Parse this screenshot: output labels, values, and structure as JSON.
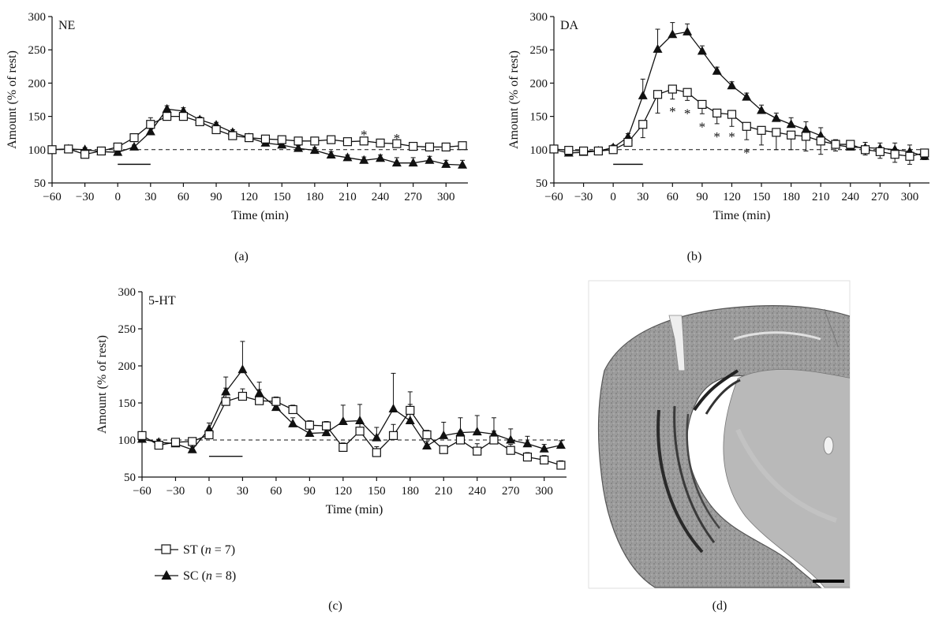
{
  "legend": {
    "entries": [
      {
        "label": "ST (",
        "n_text": "n",
        "rest": " = 7)",
        "marker": "open-square"
      },
      {
        "label": "SC (",
        "n_text": "n",
        "rest": " = 8)",
        "marker": "filled-triangle"
      }
    ]
  },
  "chart_data": [
    {
      "type": "line",
      "panel": "(a)",
      "title": "NE",
      "xlabel": "Time (min)",
      "ylabel": "Amount (% of rest)",
      "xlim": [
        -60,
        320
      ],
      "ylim": [
        50,
        300
      ],
      "xticks": [
        -60,
        -30,
        0,
        30,
        60,
        90,
        120,
        150,
        180,
        210,
        240,
        270,
        300
      ],
      "xtick_labels": [
        "−60",
        "−30",
        "0",
        "30",
        "60",
        "90",
        "120",
        "150",
        "180",
        "210",
        "240",
        "270",
        "300"
      ],
      "yticks": [
        50,
        100,
        150,
        200,
        250,
        300
      ],
      "baseline": 100,
      "stim_bar": [
        0,
        30,
        78
      ],
      "x": [
        -60,
        -45,
        -30,
        -15,
        0,
        15,
        30,
        45,
        60,
        75,
        90,
        105,
        120,
        135,
        150,
        165,
        180,
        195,
        210,
        225,
        240,
        255,
        270,
        285,
        300,
        315
      ],
      "series": [
        {
          "name": "ST",
          "marker": "open-square",
          "values": [
            100,
            101,
            93,
            98,
            104,
            118,
            138,
            150,
            150,
            142,
            130,
            121,
            118,
            116,
            115,
            113,
            113,
            115,
            112,
            113,
            110,
            109,
            105,
            104,
            104,
            106
          ],
          "err": [
            3,
            3,
            3,
            3,
            3,
            3,
            10,
            4,
            3,
            3,
            3,
            3,
            3,
            4,
            5,
            4,
            4,
            5,
            4,
            4,
            4,
            4,
            3,
            3,
            3,
            5
          ]
        },
        {
          "name": "SC",
          "marker": "filled-triangle",
          "values": [
            100,
            101,
            100,
            97,
            96,
            104,
            127,
            161,
            158,
            145,
            137,
            126,
            118,
            110,
            107,
            102,
            99,
            92,
            88,
            84,
            87,
            80,
            80,
            84,
            78,
            77
          ],
          "err": [
            3,
            3,
            3,
            3,
            3,
            3,
            5,
            5,
            5,
            4,
            4,
            4,
            4,
            4,
            4,
            4,
            4,
            5,
            4,
            5,
            5,
            8,
            8,
            6,
            6,
            7
          ]
        }
      ],
      "annotations": [
        {
          "x": 225,
          "y": 125,
          "text": "*"
        },
        {
          "x": 255,
          "y": 120,
          "text": "*"
        }
      ]
    },
    {
      "type": "line",
      "panel": "(b)",
      "title": "DA",
      "xlabel": "Time (min)",
      "ylabel": "Amount (% of rest)",
      "xlim": [
        -60,
        320
      ],
      "ylim": [
        50,
        300
      ],
      "xticks": [
        -60,
        -30,
        0,
        30,
        60,
        90,
        120,
        150,
        180,
        210,
        240,
        270,
        300
      ],
      "xtick_labels": [
        "−60",
        "−30",
        "0",
        "30",
        "60",
        "90",
        "120",
        "150",
        "180",
        "210",
        "240",
        "270",
        "300"
      ],
      "yticks": [
        50,
        100,
        150,
        200,
        250,
        300
      ],
      "baseline": 100,
      "stim_bar": [
        0,
        30,
        78
      ],
      "x": [
        -60,
        -45,
        -30,
        -15,
        0,
        15,
        30,
        45,
        60,
        75,
        90,
        105,
        120,
        135,
        150,
        165,
        180,
        195,
        210,
        225,
        240,
        255,
        270,
        285,
        300,
        315
      ],
      "series": [
        {
          "name": "ST",
          "marker": "open-square",
          "values": [
            101,
            99,
            98,
            98,
            100,
            111,
            138,
            183,
            191,
            186,
            168,
            155,
            153,
            135,
            129,
            126,
            122,
            120,
            113,
            108,
            108,
            100,
            97,
            93,
            90,
            95
          ],
          "err": [
            4,
            4,
            3,
            3,
            3,
            5,
            20,
            28,
            15,
            12,
            14,
            16,
            18,
            20,
            22,
            26,
            22,
            22,
            20,
            10,
            8,
            8,
            10,
            12,
            12,
            10
          ]
        },
        {
          "name": "SC",
          "marker": "filled-triangle",
          "values": [
            100,
            95,
            96,
            98,
            103,
            119,
            181,
            251,
            273,
            277,
            248,
            218,
            196,
            179,
            159,
            147,
            138,
            130,
            121,
            107,
            104,
            103,
            102,
            100,
            97,
            90
          ],
          "err": [
            3,
            3,
            3,
            3,
            4,
            5,
            25,
            30,
            18,
            12,
            8,
            6,
            6,
            6,
            8,
            8,
            10,
            12,
            12,
            8,
            8,
            8,
            8,
            10,
            10,
            10
          ]
        }
      ],
      "annotations": [
        {
          "x": 60,
          "y": 160,
          "text": "*"
        },
        {
          "x": 75,
          "y": 157,
          "text": "*"
        },
        {
          "x": 90,
          "y": 137,
          "text": "*"
        },
        {
          "x": 105,
          "y": 122,
          "text": "*"
        },
        {
          "x": 120,
          "y": 122,
          "text": "*"
        },
        {
          "x": 135,
          "y": 98,
          "text": "*"
        }
      ]
    },
    {
      "type": "line",
      "panel": "(c)",
      "title": "5-HT",
      "xlabel": "Time (min)",
      "ylabel": "Amount (% of rest)",
      "xlim": [
        -60,
        320
      ],
      "ylim": [
        50,
        300
      ],
      "xticks": [
        -60,
        -30,
        0,
        30,
        60,
        90,
        120,
        150,
        180,
        210,
        240,
        270,
        300
      ],
      "xtick_labels": [
        "−60",
        "−30",
        "0",
        "30",
        "60",
        "90",
        "120",
        "150",
        "180",
        "210",
        "240",
        "270",
        "300"
      ],
      "yticks": [
        50,
        100,
        150,
        200,
        250,
        300
      ],
      "baseline": 100,
      "stim_bar": [
        0,
        30,
        78
      ],
      "x": [
        -60,
        -45,
        -30,
        -15,
        0,
        15,
        30,
        45,
        60,
        75,
        90,
        105,
        120,
        135,
        150,
        165,
        180,
        195,
        210,
        225,
        240,
        255,
        270,
        285,
        300,
        315
      ],
      "series": [
        {
          "name": "ST",
          "marker": "open-square",
          "values": [
            106,
            93,
            97,
            98,
            107,
            152,
            159,
            153,
            152,
            141,
            120,
            119,
            90,
            112,
            83,
            106,
            140,
            107,
            87,
            100,
            85,
            100,
            86,
            77,
            73,
            66
          ],
          "err": [
            4,
            4,
            4,
            4,
            5,
            18,
            10,
            15,
            6,
            6,
            6,
            6,
            6,
            15,
            8,
            15,
            25,
            6,
            5,
            12,
            10,
            12,
            8,
            6,
            6,
            6
          ]
        },
        {
          "name": "SC",
          "marker": "filled-triangle",
          "values": [
            101,
            97,
            95,
            87,
            115,
            165,
            195,
            163,
            144,
            122,
            109,
            110,
            125,
            126,
            103,
            142,
            126,
            92,
            106,
            110,
            111,
            108,
            100,
            95,
            88,
            93
          ],
          "err": [
            4,
            4,
            4,
            4,
            8,
            20,
            38,
            15,
            14,
            8,
            8,
            8,
            22,
            22,
            14,
            48,
            22,
            6,
            18,
            20,
            22,
            22,
            15,
            10,
            6,
            6
          ]
        }
      ],
      "annotations": []
    }
  ]
}
